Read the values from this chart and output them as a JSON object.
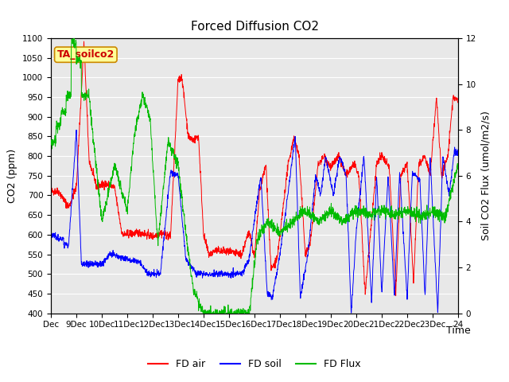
{
  "title": "Forced Diffusion CO2",
  "xlabel": "Time",
  "ylabel_left": "CO2 (ppm)",
  "ylabel_right": "Soil CO2 Flux (umol/m2/s)",
  "annotation": "TA_soilco2",
  "ylim_left": [
    400,
    1100
  ],
  "ylim_right": [
    0,
    12
  ],
  "yticks_left": [
    400,
    450,
    500,
    550,
    600,
    650,
    700,
    750,
    800,
    850,
    900,
    950,
    1000,
    1050,
    1100
  ],
  "yticks_right": [
    0,
    2,
    4,
    6,
    8,
    10,
    12
  ],
  "xtick_labels": [
    "Dec",
    "9Dec",
    "10Dec",
    "11Dec",
    "12Dec",
    "13Dec",
    "14Dec",
    "15Dec",
    "16Dec",
    "17Dec",
    "18Dec",
    "19Dec",
    "20Dec",
    "21Dec",
    "22Dec",
    "23Dec",
    "24"
  ],
  "legend_entries": [
    "FD air",
    "FD soil",
    "FD Flux"
  ],
  "legend_colors": [
    "#ff0000",
    "#0000ff",
    "#00bb00"
  ],
  "line_colors": {
    "fd_air": "#ff0000",
    "fd_soil": "#0000ff",
    "fd_flux": "#00bb00"
  },
  "background_color": "#ffffff",
  "plot_bg_color": "#e8e8e8",
  "grid_color": "#ffffff",
  "title_fontsize": 11,
  "label_fontsize": 9,
  "tick_fontsize": 7.5,
  "annotation_fontsize": 9,
  "legend_fontsize": 9
}
